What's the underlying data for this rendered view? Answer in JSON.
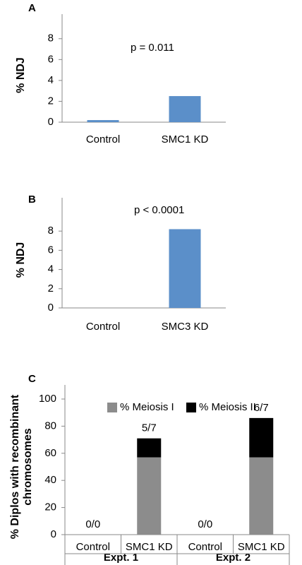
{
  "chart_data": [
    {
      "type": "bar",
      "label": "A",
      "annotation": "p = 0.011",
      "y_label": "% NDJ",
      "categories": [
        "Control",
        "SMC1 KD"
      ],
      "values": [
        0.2,
        2.5
      ],
      "color": "#5b8fc9",
      "ylim": [
        0,
        9
      ],
      "yticks": [
        0,
        2,
        4,
        6,
        8
      ]
    },
    {
      "type": "bar",
      "label": "B",
      "annotation": "p < 0.0001",
      "y_label": "% NDJ",
      "categories": [
        "Control",
        "SMC3 KD"
      ],
      "values": [
        0,
        8.2
      ],
      "color": "#5b8fc9",
      "ylim": [
        0,
        10
      ],
      "yticks": [
        0,
        2,
        4,
        6,
        8
      ]
    },
    {
      "type": "stacked_bar",
      "label": "C",
      "y_label": [
        "% Diplos with recombinant",
        "chromosomes"
      ],
      "categories": [
        "Control",
        "SMC1 KD",
        "Control",
        "SMC1 KD"
      ],
      "groups": [
        "Expt. 1",
        "Expt. 2"
      ],
      "series": [
        {
          "name": "% Meiosis I",
          "color": "#8c8c8c",
          "values": [
            0,
            57,
            0,
            57
          ]
        },
        {
          "name": "% Meiosis II",
          "color": "#000000",
          "values": [
            0,
            14,
            0,
            29
          ]
        }
      ],
      "bar_labels": [
        "0/0",
        "5/7",
        "0/0",
        "6/7"
      ],
      "ylim": [
        0,
        100
      ],
      "yticks": [
        0,
        20,
        40,
        60,
        80,
        100
      ]
    }
  ]
}
